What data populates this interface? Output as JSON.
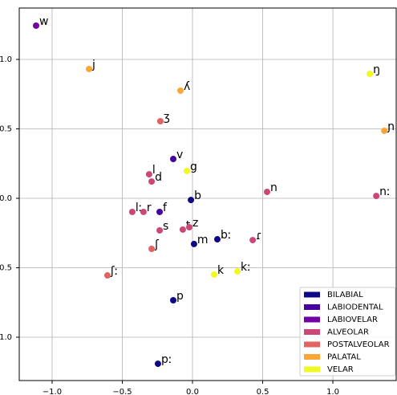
{
  "chart_data": {
    "type": "scatter",
    "xlim": [
      -1.234,
      1.451
    ],
    "ylim": [
      -1.312,
      1.37
    ],
    "xticks": [
      {
        "value": -1.0,
        "label": "−1.0"
      },
      {
        "value": -0.5,
        "label": "−0.5"
      },
      {
        "value": 0.0,
        "label": "0.0"
      },
      0.5,
      {
        "value": 1.0,
        "label": "1.0"
      }
    ],
    "yticks": [
      {
        "value": 1.0,
        "label": "1.0"
      },
      0.5,
      {
        "value": 0.0,
        "label": "0.0"
      },
      {
        "value": -0.5,
        "label": "−0.5"
      },
      {
        "value": -1.0,
        "label": "−1.0"
      }
    ],
    "grid": true,
    "legend": "lower right",
    "series": [
      {
        "name": "BILABIAL",
        "color": "#0d0887",
        "x": [
          -0.011,
          0.177,
          0.011,
          -0.137,
          -0.246
        ],
        "values": [
          -0.012,
          -0.295,
          -0.329,
          -0.734,
          -1.191
        ],
        "labels": [
          "b",
          "bː",
          "m",
          "p",
          "pː"
        ]
      },
      {
        "name": "LABIODENTAL",
        "color": "#46039f",
        "x": [
          -0.137,
          -0.234
        ],
        "values": [
          0.283,
          -0.098
        ],
        "labels": [
          "v",
          "f"
        ]
      },
      {
        "name": "LABIOVELAR",
        "color": "#7201a8",
        "x": [
          -1.114
        ],
        "values": [
          1.243
        ],
        "labels": [
          "w"
        ]
      },
      {
        "name": "ALVEOLAR",
        "color": "#cc4778",
        "x": [
          -0.309,
          -0.291,
          0.531,
          1.309,
          -0.429,
          -0.349,
          -0.069,
          -0.023,
          -0.234,
          0.429
        ],
        "values": [
          0.173,
          0.121,
          0.046,
          0.017,
          -0.098,
          -0.098,
          -0.225,
          -0.208,
          -0.231,
          -0.301
        ],
        "labels": [
          "l",
          "d",
          "n",
          "nː",
          "lː",
          "r",
          "t",
          "z",
          "s",
          "ɾ"
        ]
      },
      {
        "name": "POSTALVEOLAR",
        "color": "#e16462",
        "x": [
          -0.229,
          -0.291,
          -0.606
        ],
        "values": [
          0.555,
          -0.364,
          -0.555
        ],
        "labels": [
          "ʒ",
          "ʃ",
          "ʃː"
        ]
      },
      {
        "name": "PALATAL",
        "color": "#fca636",
        "x": [
          -0.737,
          -0.086,
          1.366
        ],
        "values": [
          0.931,
          0.775,
          0.486
        ],
        "labels": [
          "j",
          "ʎ",
          "ɲ"
        ]
      },
      {
        "name": "VELAR",
        "color": "#f0f921",
        "x": [
          1.263,
          -0.04,
          0.154,
          0.32
        ],
        "values": [
          0.896,
          0.197,
          -0.549,
          -0.526
        ],
        "labels": [
          "ŋ",
          "g",
          "k",
          "kː"
        ]
      }
    ]
  }
}
